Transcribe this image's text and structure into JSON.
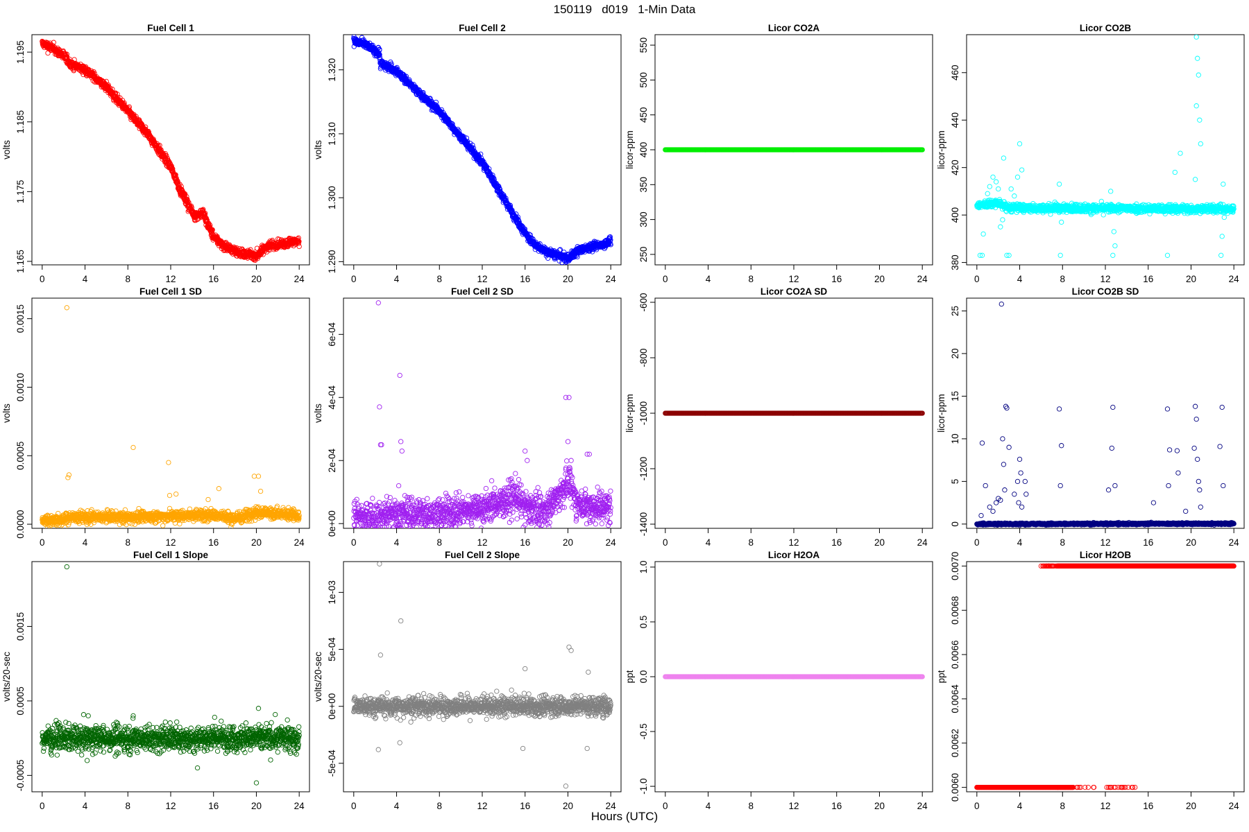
{
  "figure": {
    "title": "150119   d019   1-Min Data",
    "xlabel": "Hours (UTC)"
  },
  "chart_data": [
    {
      "type": "scatter",
      "title": "Fuel Cell 1",
      "xlabel": "",
      "ylabel": "volts",
      "color": "#ff0000",
      "xlim": [
        0,
        24
      ],
      "xticks": [
        "0",
        "4",
        "8",
        "12",
        "16",
        "20",
        "24"
      ],
      "ylim": [
        1.1645,
        1.1975
      ],
      "yticks": [
        1.165,
        1.175,
        1.185,
        1.195
      ],
      "ytick_labels": [
        "1.165",
        "1.175",
        "1.185",
        "1.195"
      ],
      "trend": [
        [
          0,
          1.1962
        ],
        [
          1,
          1.1955
        ],
        [
          2,
          1.1945
        ],
        [
          2.4,
          1.1938
        ],
        [
          2.7,
          1.1932
        ],
        [
          4,
          1.1925
        ],
        [
          6,
          1.19
        ],
        [
          8,
          1.1865
        ],
        [
          10,
          1.183
        ],
        [
          12,
          1.1785
        ],
        [
          13,
          1.175
        ],
        [
          14.2,
          1.1715
        ],
        [
          15,
          1.172
        ],
        [
          16,
          1.1685
        ],
        [
          17,
          1.1672
        ],
        [
          18,
          1.1665
        ],
        [
          19,
          1.166
        ],
        [
          20,
          1.1658
        ],
        [
          21,
          1.1672
        ],
        [
          22,
          1.1674
        ],
        [
          23,
          1.1677
        ],
        [
          24,
          1.168
        ]
      ],
      "noise": 0.0003,
      "outliers": [
        [
          2.5,
          1.1935
        ],
        [
          19.8,
          1.1652
        ]
      ]
    },
    {
      "type": "scatter",
      "title": "Fuel Cell 2",
      "xlabel": "",
      "ylabel": "volts",
      "color": "#0000ff",
      "xlim": [
        0,
        24
      ],
      "xticks": [
        "0",
        "4",
        "8",
        "12",
        "16",
        "20",
        "24"
      ],
      "ylim": [
        1.2895,
        1.3255
      ],
      "yticks": [
        1.29,
        1.3,
        1.31,
        1.32
      ],
      "ytick_labels": [
        "1.290",
        "1.300",
        "1.310",
        "1.320"
      ],
      "trend": [
        [
          0,
          1.3245
        ],
        [
          1,
          1.324
        ],
        [
          2.4,
          1.3225
        ],
        [
          2.5,
          1.321
        ],
        [
          4,
          1.3198
        ],
        [
          6,
          1.3165
        ],
        [
          8,
          1.3135
        ],
        [
          10,
          1.3095
        ],
        [
          12,
          1.3055
        ],
        [
          14,
          1.3
        ],
        [
          15,
          1.297
        ],
        [
          16,
          1.2945
        ],
        [
          17,
          1.2925
        ],
        [
          18,
          1.2915
        ],
        [
          19,
          1.291
        ],
        [
          20,
          1.2905
        ],
        [
          21,
          1.2918
        ],
        [
          22,
          1.2922
        ],
        [
          23,
          1.2926
        ],
        [
          24,
          1.2932
        ]
      ],
      "noise": 0.0003,
      "outliers": [
        [
          2.3,
          1.3235
        ],
        [
          2.4,
          1.3232
        ]
      ]
    },
    {
      "type": "scatter",
      "title": "Licor CO2A",
      "xlabel": "",
      "ylabel": "licor-ppm",
      "color": "#00ee00",
      "xlim": [
        0,
        24
      ],
      "xticks": [
        "0",
        "4",
        "8",
        "12",
        "16",
        "20",
        "24"
      ],
      "ylim": [
        235,
        565
      ],
      "yticks": [
        250,
        300,
        350,
        400,
        450,
        500,
        550
      ],
      "ytick_labels": [
        "250",
        "300",
        "350",
        "400",
        "450",
        "500",
        "550"
      ],
      "trend": [
        [
          0,
          400
        ],
        [
          24,
          400
        ]
      ],
      "noise": 0,
      "outliers": []
    },
    {
      "type": "scatter",
      "title": "Licor CO2B",
      "xlabel": "",
      "ylabel": "licor-ppm",
      "color": "#00ffff",
      "xlim": [
        0,
        24
      ],
      "xticks": [
        "0",
        "4",
        "8",
        "12",
        "16",
        "20",
        "24"
      ],
      "ylim": [
        379,
        476
      ],
      "yticks": [
        380,
        400,
        420,
        440,
        460
      ],
      "ytick_labels": [
        "380",
        "400",
        "420",
        "440",
        "460"
      ],
      "trend": [
        [
          0,
          404
        ],
        [
          1,
          404.5
        ],
        [
          2,
          405
        ],
        [
          3,
          403
        ],
        [
          4,
          403
        ],
        [
          24,
          402.5
        ]
      ],
      "noise": 0.8,
      "outliers": [
        [
          0.3,
          383
        ],
        [
          0.5,
          383
        ],
        [
          0.6,
          392
        ],
        [
          1,
          409
        ],
        [
          1.2,
          412
        ],
        [
          1.5,
          416
        ],
        [
          1.8,
          414
        ],
        [
          2,
          411
        ],
        [
          2.2,
          395
        ],
        [
          2.4,
          398
        ],
        [
          2.5,
          424
        ],
        [
          2.8,
          383
        ],
        [
          3,
          383
        ],
        [
          3.2,
          411
        ],
        [
          3.5,
          408
        ],
        [
          3.8,
          416
        ],
        [
          4,
          430
        ],
        [
          4.2,
          419
        ],
        [
          7.7,
          413
        ],
        [
          7.8,
          383
        ],
        [
          7.9,
          397
        ],
        [
          12.5,
          410
        ],
        [
          12.7,
          383
        ],
        [
          12.8,
          393
        ],
        [
          12.9,
          387
        ],
        [
          17.8,
          383
        ],
        [
          18.5,
          418
        ],
        [
          19,
          426
        ],
        [
          20.5,
          475
        ],
        [
          20.6,
          466
        ],
        [
          20.7,
          459
        ],
        [
          20.8,
          440
        ],
        [
          20.9,
          430
        ],
        [
          20.5,
          446
        ],
        [
          20.4,
          415
        ],
        [
          22.8,
          383
        ],
        [
          22.9,
          391
        ],
        [
          23,
          413
        ],
        [
          23.1,
          399
        ]
      ]
    },
    {
      "type": "scatter",
      "title": "Fuel Cell 1 SD",
      "xlabel": "",
      "ylabel": "volts",
      "color": "#ffa500",
      "xlim": [
        0,
        24
      ],
      "xticks": [
        "0",
        "4",
        "8",
        "12",
        "16",
        "20",
        "24"
      ],
      "ylim": [
        -3e-05,
        0.00165
      ],
      "yticks": [
        0,
        0.0005,
        0.001,
        0.0015
      ],
      "ytick_labels": [
        "0.0000",
        "0.0005",
        "0.0010",
        "0.0015"
      ],
      "trend": [
        [
          0,
          3e-05
        ],
        [
          2,
          3e-05
        ],
        [
          2.5,
          5e-05
        ],
        [
          8,
          5e-05
        ],
        [
          12,
          6e-05
        ],
        [
          16,
          7e-05
        ],
        [
          18,
          4e-05
        ],
        [
          20,
          9e-05
        ],
        [
          24,
          6e-05
        ]
      ],
      "noise": 2e-05,
      "outliers": [
        [
          2.3,
          0.00158
        ],
        [
          2.4,
          0.00034
        ],
        [
          2.5,
          0.00036
        ],
        [
          8.5,
          0.00056
        ],
        [
          11.8,
          0.00045
        ],
        [
          11.9,
          0.00021
        ],
        [
          16.5,
          0.00026
        ],
        [
          19.8,
          0.00035
        ],
        [
          20.2,
          0.00035
        ],
        [
          20.4,
          0.00024
        ],
        [
          12.5,
          0.00022
        ],
        [
          15.5,
          0.00018
        ]
      ]
    },
    {
      "type": "scatter",
      "title": "Fuel Cell 2 SD",
      "xlabel": "",
      "ylabel": "volts",
      "color": "#a020f0",
      "xlim": [
        0,
        24
      ],
      "xticks": [
        "0",
        "4",
        "8",
        "12",
        "16",
        "20",
        "24"
      ],
      "ylim": [
        -1.5e-05,
        0.000715
      ],
      "yticks": [
        0,
        0.0002,
        0.0004,
        0.0006
      ],
      "ytick_labels": [
        "0e+00",
        "2e-04",
        "4e-04",
        "6e-04"
      ],
      "trend": [
        [
          0,
          2e-05
        ],
        [
          2,
          2e-05
        ],
        [
          2.5,
          2e-05
        ],
        [
          3,
          3e-05
        ],
        [
          8,
          3e-05
        ],
        [
          12,
          5e-05
        ],
        [
          14,
          7e-05
        ],
        [
          15,
          9e-05
        ],
        [
          16,
          5e-05
        ],
        [
          18,
          4e-05
        ],
        [
          20,
          0.00013
        ],
        [
          21,
          6e-05
        ],
        [
          24,
          5e-05
        ]
      ],
      "noise": 2.5e-05,
      "outliers": [
        [
          2.3,
          0.0007
        ],
        [
          2.4,
          0.00037
        ],
        [
          2.5,
          0.00025
        ],
        [
          2.6,
          0.00025
        ],
        [
          4.3,
          0.00047
        ],
        [
          4.4,
          0.00026
        ],
        [
          4.5,
          0.00023
        ],
        [
          4.2,
          0.00012
        ],
        [
          16,
          0.00023
        ],
        [
          16.2,
          0.0002
        ],
        [
          19.8,
          0.0004
        ],
        [
          20.1,
          0.0004
        ],
        [
          20,
          0.00026
        ],
        [
          20.3,
          0.0002
        ],
        [
          21.8,
          0.00022
        ],
        [
          22,
          0.00022
        ]
      ]
    },
    {
      "type": "scatter",
      "title": "Licor CO2A SD",
      "xlabel": "",
      "ylabel": "licor-ppm",
      "color": "#8b0000",
      "xlim": [
        0,
        24
      ],
      "xticks": [
        "0",
        "4",
        "8",
        "12",
        "16",
        "20",
        "24"
      ],
      "ylim": [
        -1415,
        -585
      ],
      "yticks": [
        -1400,
        -1200,
        -1000,
        -800,
        -600
      ],
      "ytick_labels": [
        "-1400",
        "-1200",
        "-1000",
        "-800",
        "-600"
      ],
      "trend": [
        [
          0,
          -1000
        ],
        [
          24,
          -1000
        ]
      ],
      "noise": 0,
      "outliers": []
    },
    {
      "type": "scatter",
      "title": "Licor CO2B SD",
      "xlabel": "",
      "ylabel": "licor-ppm",
      "color": "#000080",
      "xlim": [
        0,
        24
      ],
      "xticks": [
        "0",
        "4",
        "8",
        "12",
        "16",
        "20",
        "24"
      ],
      "ylim": [
        -0.5,
        26.5
      ],
      "yticks": [
        0,
        5,
        10,
        15,
        20,
        25
      ],
      "ytick_labels": [
        "0",
        "5",
        "10",
        "15",
        "20",
        "25"
      ],
      "trend": [
        [
          0,
          0
        ],
        [
          24,
          0.05
        ]
      ],
      "noise": 0.05,
      "outliers": [
        [
          0.4,
          1
        ],
        [
          0.5,
          9.5
        ],
        [
          0.8,
          4.5
        ],
        [
          1.2,
          2
        ],
        [
          1.5,
          1.5
        ],
        [
          1.8,
          2.5
        ],
        [
          2,
          3
        ],
        [
          2.2,
          2.8
        ],
        [
          2.3,
          25.8
        ],
        [
          2.4,
          10
        ],
        [
          2.5,
          7
        ],
        [
          2.6,
          4
        ],
        [
          2.7,
          13.8
        ],
        [
          2.8,
          13.6
        ],
        [
          3,
          9
        ],
        [
          3.5,
          3.5
        ],
        [
          3.8,
          5
        ],
        [
          3.9,
          2.5
        ],
        [
          4,
          7.6
        ],
        [
          4.1,
          6
        ],
        [
          4.2,
          2
        ],
        [
          4.5,
          5
        ],
        [
          4.6,
          3.5
        ],
        [
          7.7,
          13.5
        ],
        [
          7.8,
          4.5
        ],
        [
          7.9,
          9.2
        ],
        [
          12.3,
          4
        ],
        [
          12.6,
          8.9
        ],
        [
          12.7,
          13.7
        ],
        [
          12.9,
          4.5
        ],
        [
          16.5,
          2.5
        ],
        [
          17.8,
          13.5
        ],
        [
          17.9,
          4.5
        ],
        [
          18,
          8.7
        ],
        [
          18.7,
          8.6
        ],
        [
          18.8,
          6
        ],
        [
          19.5,
          1.5
        ],
        [
          20.3,
          8.9
        ],
        [
          20.4,
          13.8
        ],
        [
          20.5,
          12.3
        ],
        [
          20.6,
          7.6
        ],
        [
          20.7,
          5
        ],
        [
          20.8,
          4
        ],
        [
          20.9,
          2
        ],
        [
          22.7,
          9.1
        ],
        [
          22.9,
          13.7
        ],
        [
          23,
          4.5
        ]
      ]
    },
    {
      "type": "scatter",
      "title": "Fuel Cell 1 Slope",
      "xlabel": "",
      "ylabel": "volts/20-sec",
      "color": "#006400",
      "xlim": [
        0,
        24
      ],
      "xticks": [
        "0",
        "4",
        "8",
        "12",
        "16",
        "20",
        "24"
      ],
      "ylim": [
        -0.00072,
        0.00237
      ],
      "yticks": [
        -0.0005,
        0.0005,
        0.0015
      ],
      "ytick_labels": [
        "-0.0005",
        "0.0005",
        "0.0015"
      ],
      "trend": [
        [
          0,
          0
        ],
        [
          24,
          0
        ]
      ],
      "noise": 8e-05,
      "outliers": [
        [
          2.3,
          0.0023
        ],
        [
          4.3,
          0.0003
        ],
        [
          8.5,
          0.0003
        ],
        [
          20,
          -0.0006
        ],
        [
          20.2,
          0.0004
        ],
        [
          16.1,
          0.00028
        ],
        [
          14.5,
          -0.0004
        ],
        [
          4.2,
          -0.0003
        ],
        [
          0.8,
          -0.0002
        ]
      ]
    },
    {
      "type": "scatter",
      "title": "Fuel Cell 2 Slope",
      "xlabel": "",
      "ylabel": "volts/20-sec",
      "color": "#808080",
      "xlim": [
        0,
        24
      ],
      "xticks": [
        "0",
        "4",
        "8",
        "12",
        "16",
        "20",
        "24"
      ],
      "ylim": [
        -0.00075,
        0.00127
      ],
      "yticks": [
        -0.0005,
        0,
        0.0005,
        0.001
      ],
      "ytick_labels": [
        "-5e-04",
        "0e+00",
        "5e-04",
        "1e-03"
      ],
      "trend": [
        [
          0,
          0
        ],
        [
          24,
          0
        ]
      ],
      "noise": 4e-05,
      "outliers": [
        [
          2.4,
          0.00125
        ],
        [
          2.5,
          0.00045
        ],
        [
          2.3,
          -0.00038
        ],
        [
          4.4,
          0.00075
        ],
        [
          4.3,
          -0.00032
        ],
        [
          16,
          0.00033
        ],
        [
          15.8,
          -0.00037
        ],
        [
          19.8,
          -0.0007
        ],
        [
          20.1,
          0.00052
        ],
        [
          20.3,
          0.00049
        ],
        [
          21.8,
          -0.00037
        ],
        [
          21.9,
          0.0003
        ]
      ]
    },
    {
      "type": "scatter",
      "title": "Licor H2OA",
      "xlabel": "",
      "ylabel": "ppt",
      "color": "#ee82ee",
      "xlim": [
        0,
        24
      ],
      "xticks": [
        "0",
        "4",
        "8",
        "12",
        "16",
        "20",
        "24"
      ],
      "ylim": [
        -1.05,
        1.05
      ],
      "yticks": [
        -1,
        -0.5,
        0,
        0.5,
        1
      ],
      "ytick_labels": [
        "-1.0",
        "-0.5",
        "0.0",
        "0.5",
        "1.0"
      ],
      "trend": [
        [
          0,
          0
        ],
        [
          24,
          0
        ]
      ],
      "noise": 0,
      "outliers": []
    },
    {
      "type": "scatter",
      "title": "Licor H2OB",
      "xlabel": "",
      "ylabel": "ppt",
      "color": "#ff0000",
      "xlim": [
        0,
        24
      ],
      "xticks": [
        "0",
        "4",
        "8",
        "12",
        "16",
        "20",
        "24"
      ],
      "ylim": [
        0.00598,
        0.00702
      ],
      "yticks": [
        0.006,
        0.0062,
        0.0064,
        0.0066,
        0.0068,
        0.007
      ],
      "ytick_labels": [
        "0.0060",
        "0.0062",
        "0.0064",
        "0.0066",
        "0.0068",
        "0.0070"
      ],
      "segments": [
        {
          "from": 0,
          "to": 15,
          "value": 0.006
        },
        {
          "from": 6,
          "to": 24,
          "value": 0.007
        }
      ],
      "noise": 0,
      "outliers": []
    }
  ]
}
